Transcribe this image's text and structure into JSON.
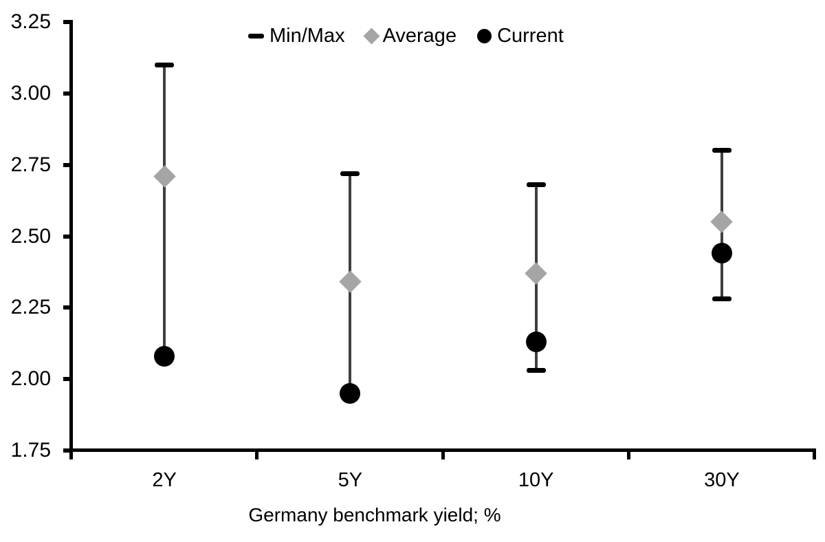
{
  "chart_data": {
    "type": "scatter",
    "subtype": "min-max-range",
    "title": "",
    "xlabel": "Germany benchmark yield; %",
    "ylabel": "",
    "ylim": [
      1.75,
      3.25
    ],
    "ytick_step": 0.25,
    "ytick_labels": [
      "3.25",
      "3.00",
      "2.75",
      "2.50",
      "2.25",
      "2.00",
      "1.75"
    ],
    "categories": [
      "2Y",
      "5Y",
      "10Y",
      "30Y"
    ],
    "series": [
      {
        "name": "Min/Max",
        "type": "range",
        "min": [
          2.08,
          1.95,
          2.03,
          2.28
        ],
        "max": [
          3.1,
          2.72,
          2.68,
          2.8
        ]
      },
      {
        "name": "Average",
        "type": "point",
        "marker": "diamond",
        "values": [
          2.71,
          2.34,
          2.37,
          2.55
        ]
      },
      {
        "name": "Current",
        "type": "point",
        "marker": "circle",
        "values": [
          2.08,
          1.95,
          2.13,
          2.44
        ]
      }
    ],
    "legend": {
      "position": "top",
      "items": [
        {
          "label": "Min/Max",
          "marker": "dash-icon",
          "color": "#000000"
        },
        {
          "label": "Average",
          "marker": "diamond-icon",
          "color": "#a5a5a5"
        },
        {
          "label": "Current",
          "marker": "circle-icon",
          "color": "#000000"
        }
      ]
    },
    "grid": false,
    "colors": {
      "background": "#ffffff",
      "axis": "#000000",
      "text": "#000000",
      "range_line": "#3f3f3f",
      "cap": "#000000",
      "average_marker": "#a5a5a5",
      "current_marker": "#000000"
    }
  }
}
